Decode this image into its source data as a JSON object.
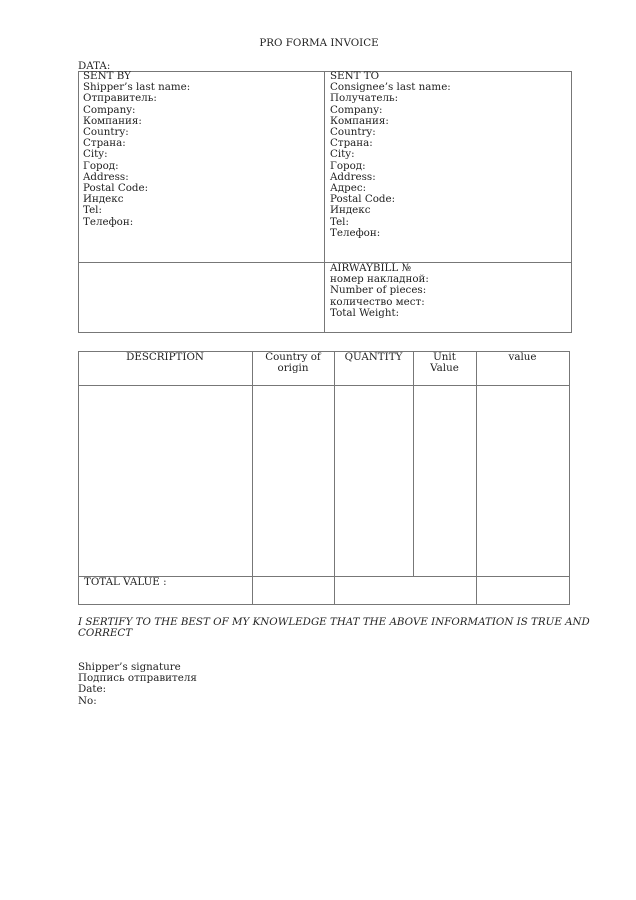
{
  "title": "PRO FORMA INVOICE",
  "data_label": "DATA:",
  "sent_by": {
    "heading": "SENT BY",
    "lines": [
      "Shipper’s last name:",
      "Отправитель:",
      "Company:",
      "Компания:",
      "Country:",
      "Страна:",
      "City:",
      "Город:",
      "Address:",
      "Postal Code:",
      "Индекс",
      "Tel:",
      "Телефон:"
    ]
  },
  "sent_to": {
    "heading": "SENT TO",
    "lines": [
      "Consignee’s last name:",
      "Получатель:",
      "Company:",
      "Компания:",
      "Country:",
      "Страна:",
      "City:",
      "Город:",
      "Address:",
      "Адрес:",
      "Postal Code:",
      "Индекс",
      "Tel:",
      "Телефон:"
    ]
  },
  "shipment": {
    "lines": [
      "AIRWAYBILL №",
      "номер накладной:",
      "Number of pieces:",
      "количество мест:",
      "Total Weight:"
    ]
  },
  "table": {
    "headers": [
      "DESCRIPTION",
      "Country of origin",
      "QUANTITY",
      "Unit Value",
      "value"
    ],
    "header_lines": {
      "country": [
        "Country of",
        "origin"
      ],
      "unit": [
        "Unit",
        "Value"
      ]
    },
    "total_label": "TOTAL VALUE :"
  },
  "certification": [
    "I SERTIFY TO THE BEST OF MY KNOWLEDGE THAT THE ABOVE INFORMATION IS TRUE AND",
    "CORRECT"
  ],
  "signature": [
    "Shipper’s signature",
    "Подпись отправителя",
    "Date:",
    "No:"
  ]
}
